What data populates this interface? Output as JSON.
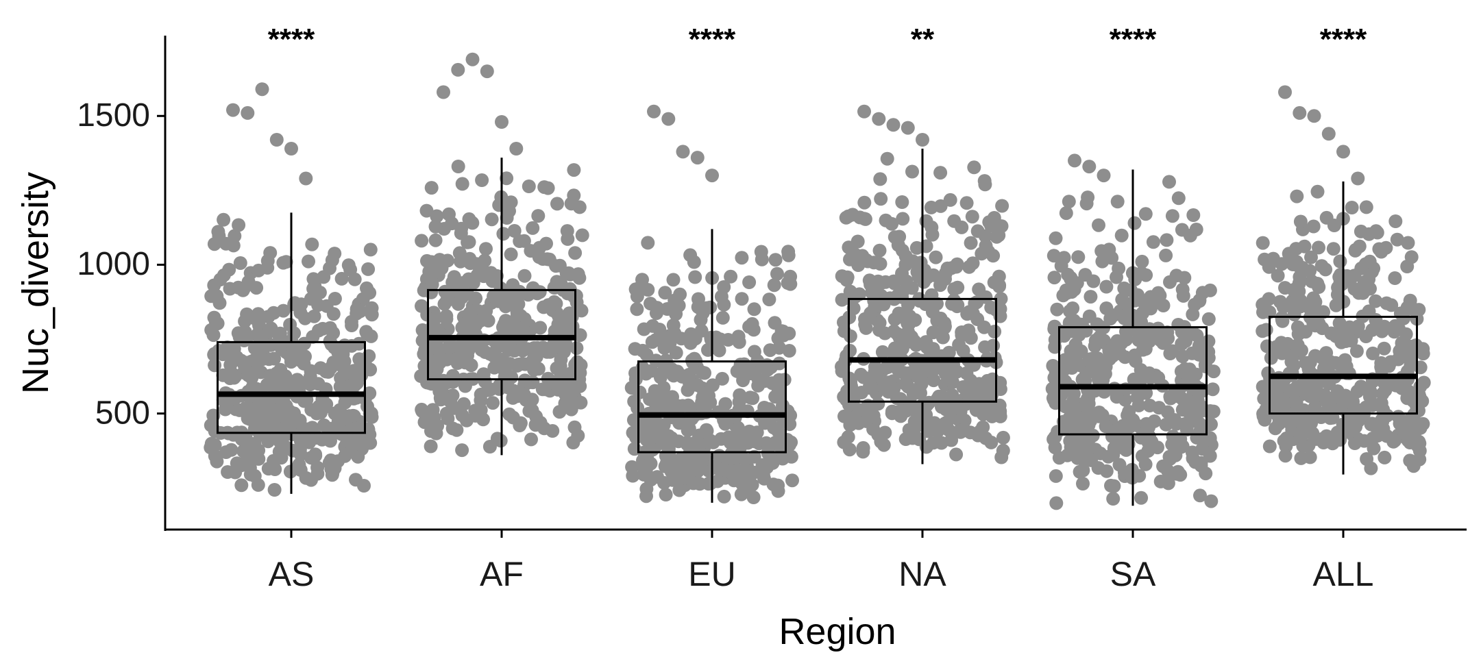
{
  "chart_data": {
    "type": "boxplot",
    "xlabel": "Region",
    "ylabel": "Nuc_diversity",
    "categories": [
      "AS",
      "AF",
      "EU",
      "NA",
      "SA",
      "ALL"
    ],
    "significance": [
      "****",
      "",
      "****",
      "**",
      "****",
      "****"
    ],
    "yticks": [
      500,
      1000,
      1500
    ],
    "ylim": [
      110,
      1770
    ],
    "point_color": "#8e8e8e",
    "boxes": [
      {
        "category": "AS",
        "min": 230,
        "q1": 435,
        "median": 565,
        "q3": 740,
        "max": 1175,
        "outliers": [
          1520,
          1510,
          1590,
          1420,
          1390,
          1290
        ],
        "n": 420
      },
      {
        "category": "AF",
        "min": 360,
        "q1": 615,
        "median": 755,
        "q3": 915,
        "max": 1360,
        "outliers": [
          1580,
          1655,
          1690,
          1650,
          1480,
          1390
        ],
        "n": 420
      },
      {
        "category": "EU",
        "min": 200,
        "q1": 370,
        "median": 495,
        "q3": 675,
        "max": 1120,
        "outliers": [
          1515,
          1490,
          1380,
          1360,
          1300
        ],
        "n": 420
      },
      {
        "category": "NA",
        "min": 330,
        "q1": 540,
        "median": 680,
        "q3": 885,
        "max": 1390,
        "outliers": [
          1515,
          1490,
          1470,
          1460,
          1420
        ],
        "n": 420
      },
      {
        "category": "SA",
        "min": 190,
        "q1": 430,
        "median": 590,
        "q3": 790,
        "max": 1320,
        "outliers": [
          1350,
          1330,
          1300
        ],
        "n": 420
      },
      {
        "category": "ALL",
        "min": 295,
        "q1": 500,
        "median": 625,
        "q3": 825,
        "max": 1280,
        "outliers": [
          1580,
          1510,
          1500,
          1440,
          1380,
          1290
        ],
        "n": 420
      }
    ]
  }
}
